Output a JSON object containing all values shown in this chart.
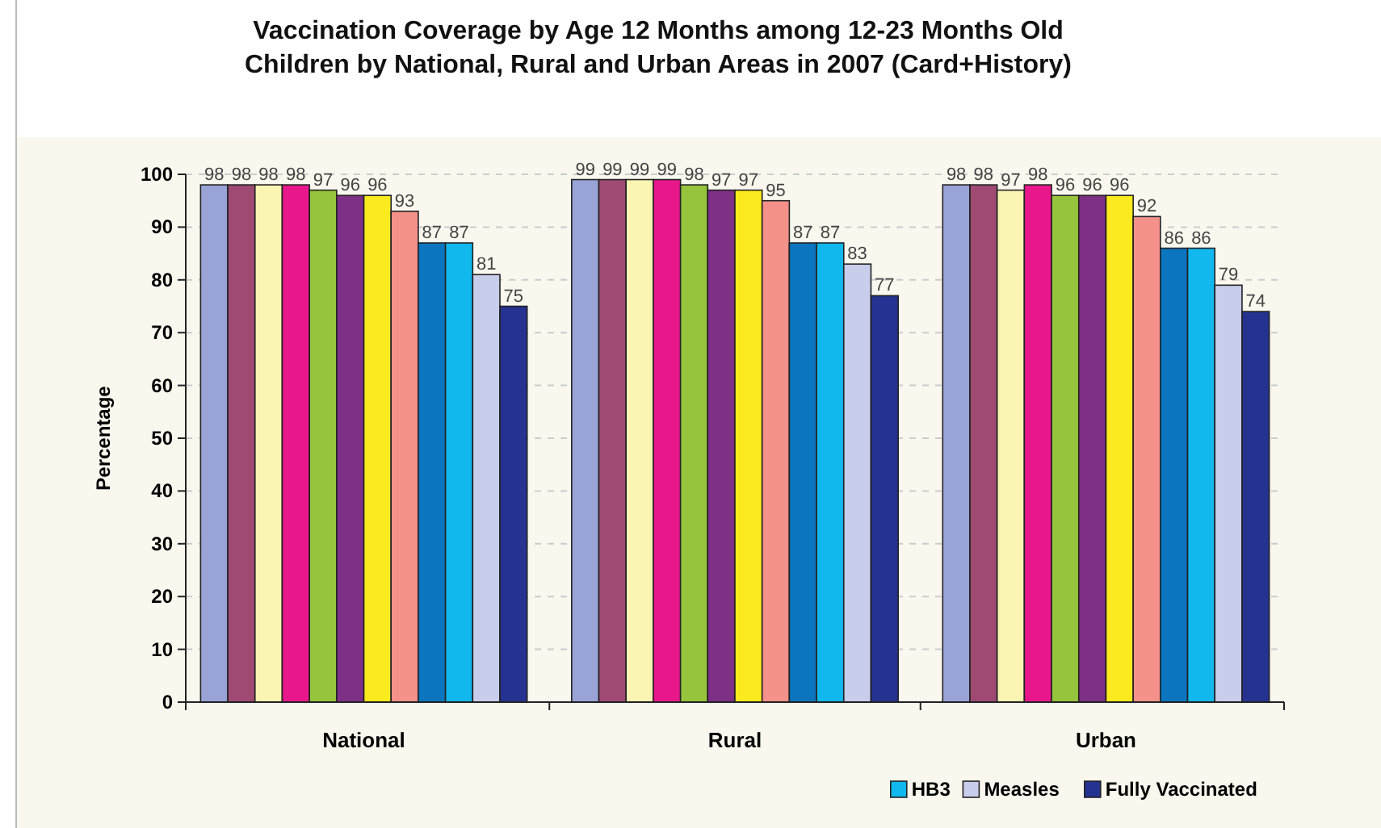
{
  "chart_data": {
    "type": "bar",
    "title": "Vaccination Coverage by Age 12 Months among 12-23 Months Old\nChildren by National, Rural and Urban Areas in 2007  (Card+History)",
    "ylabel": "Percentage",
    "categories": [
      "National",
      "Rural",
      "Urban"
    ],
    "ylim": [
      0,
      100
    ],
    "yticks": [
      0,
      10,
      20,
      30,
      40,
      50,
      60,
      70,
      80,
      90,
      100
    ],
    "grid": "y",
    "legend": "bottom right",
    "data_labels": true,
    "series": [
      {
        "color": "#9aa3d6",
        "values": [
          98,
          99,
          98
        ]
      },
      {
        "color": "#9e4a73",
        "values": [
          98,
          99,
          98
        ]
      },
      {
        "color": "#fbf5b4",
        "values": [
          98,
          99,
          97
        ]
      },
      {
        "color": "#e8188c",
        "values": [
          98,
          99,
          98
        ]
      },
      {
        "color": "#96c43c",
        "values": [
          97,
          98,
          96
        ]
      },
      {
        "color": "#7e2f86",
        "values": [
          96,
          97,
          96
        ]
      },
      {
        "color": "#fbeb1e",
        "values": [
          96,
          97,
          96
        ]
      },
      {
        "color": "#f3918a",
        "values": [
          93,
          95,
          92
        ]
      },
      {
        "color": "#0b75c0",
        "values": [
          87,
          87,
          86
        ]
      },
      {
        "name": "HB3",
        "color": "#10b8ee",
        "values": [
          87,
          87,
          86
        ]
      },
      {
        "name": "Measles",
        "color": "#c9cdec",
        "values": [
          81,
          83,
          79
        ]
      },
      {
        "name": "Fully Vaccinated",
        "color": "#25328f",
        "values": [
          75,
          77,
          74
        ]
      }
    ]
  }
}
